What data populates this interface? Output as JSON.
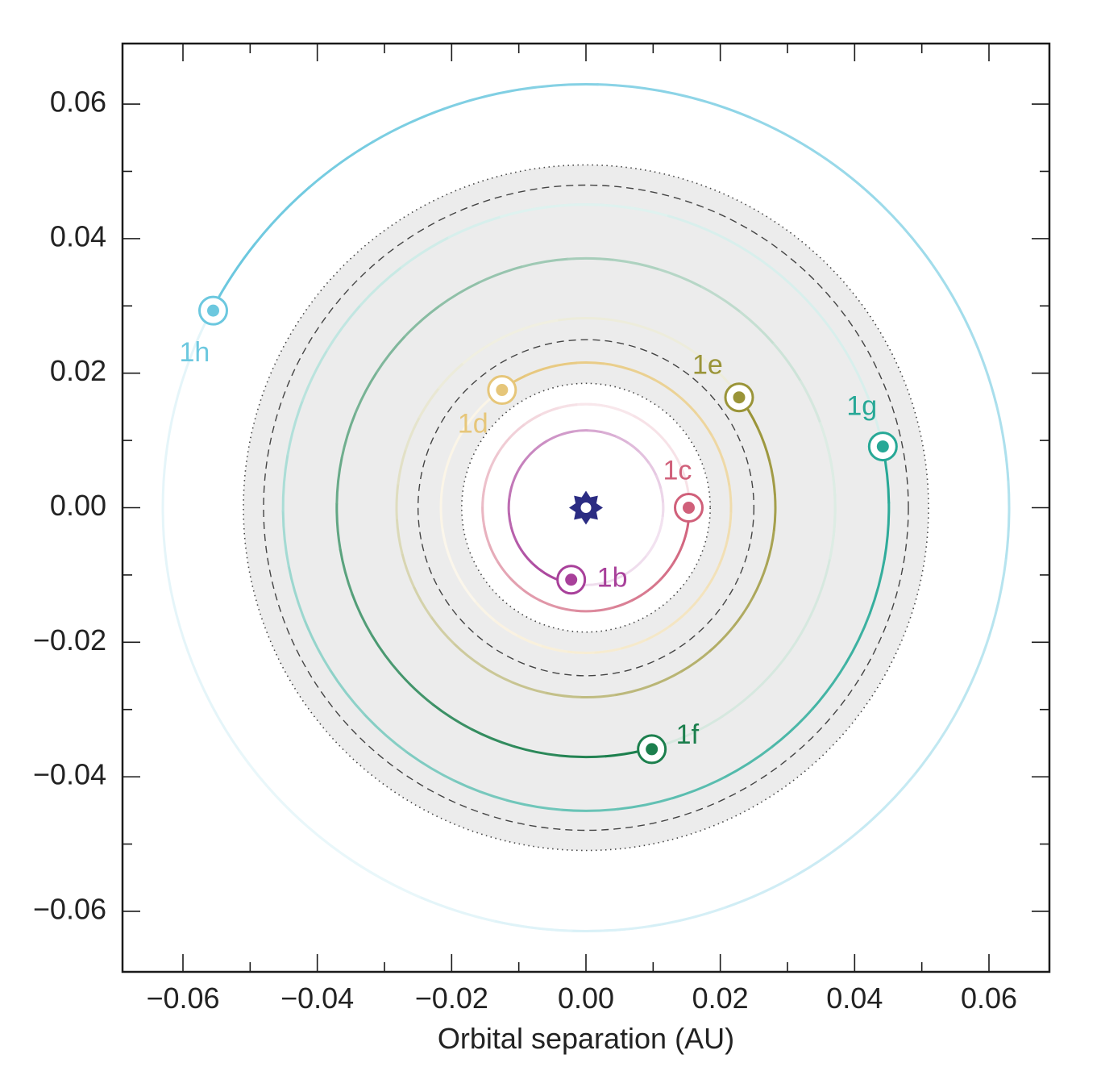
{
  "chart_data": {
    "type": "scatter",
    "title": "",
    "xlabel": "Orbital separation (AU)",
    "ylabel": "",
    "xlim": [
      -0.069,
      0.069
    ],
    "ylim": [
      -0.069,
      0.069
    ],
    "x_ticks": [
      -0.06,
      -0.04,
      -0.02,
      0.0,
      0.02,
      0.04,
      0.06
    ],
    "y_ticks": [
      0.06,
      0.04,
      0.02,
      0.0,
      -0.02,
      -0.04,
      -0.06
    ],
    "x_tick_labels": [
      "−0.06",
      "−0.04",
      "−0.02",
      "0.00",
      "0.02",
      "0.04",
      "0.06"
    ],
    "y_tick_labels": [
      "0.06",
      "0.04",
      "0.02",
      "0.00",
      "−0.02",
      "−0.04",
      "−0.06"
    ],
    "minor_tick_step": 0.01,
    "grid": false,
    "star": {
      "x": 0.0,
      "y": 0.0,
      "color": "#2b2c83"
    },
    "habitable_zone": {
      "shading_color": "#ececec",
      "conservative": [
        0.025,
        0.048
      ],
      "optimistic": [
        0.0185,
        0.051
      ]
    },
    "planets": [
      {
        "label": "1b",
        "a": 0.0115,
        "x": -0.0022,
        "y": -0.0107,
        "color": "#a8409a"
      },
      {
        "label": "1c",
        "a": 0.0154,
        "x": 0.0153,
        "y": 0.0,
        "color": "#d0607a"
      },
      {
        "label": "1d",
        "a": 0.0216,
        "x": -0.0125,
        "y": 0.0175,
        "color": "#e6c67a"
      },
      {
        "label": "1e",
        "a": 0.0282,
        "x": 0.0228,
        "y": 0.0164,
        "color": "#9a9438"
      },
      {
        "label": "1f",
        "a": 0.0371,
        "x": 0.0098,
        "y": -0.0359,
        "color": "#1c7f4d"
      },
      {
        "label": "1g",
        "a": 0.0451,
        "x": 0.0442,
        "y": 0.0091,
        "color": "#27a896"
      },
      {
        "label": "1h",
        "a": 0.063,
        "x": -0.0555,
        "y": 0.0293,
        "color": "#6cc8df"
      }
    ]
  }
}
